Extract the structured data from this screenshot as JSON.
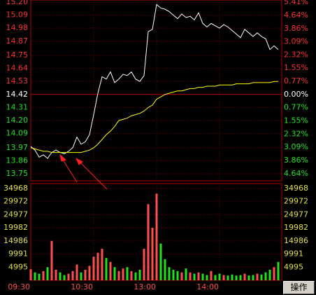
{
  "chart_data": {
    "type": "intraday",
    "categories": [
      "09:30",
      null,
      null,
      null,
      null,
      null,
      null,
      null,
      null,
      null,
      null,
      null,
      null,
      null,
      null,
      "10:30",
      null,
      null,
      null,
      null,
      null,
      null,
      null,
      null,
      null,
      null,
      null,
      null,
      null,
      null,
      "13:00",
      null,
      null,
      null,
      null,
      null,
      null,
      null,
      null,
      null,
      null,
      null,
      null,
      null,
      null,
      "14:00",
      null,
      null,
      null,
      null,
      null,
      null,
      null,
      null,
      null,
      null,
      null,
      null,
      null,
      null
    ],
    "series": [
      {
        "color": "#ffffff",
        "values": [
          13.98,
          13.95,
          13.89,
          13.91,
          13.88,
          13.93,
          13.95,
          13.93,
          13.92,
          13.94,
          13.97,
          14.06,
          14.0,
          14.02,
          14.08,
          14.25,
          14.43,
          14.57,
          14.55,
          14.61,
          14.52,
          14.55,
          14.59,
          14.58,
          14.61,
          14.55,
          14.53,
          14.58,
          14.95,
          14.97,
          15.18,
          15.15,
          15.14,
          15.12,
          15.09,
          15.06,
          15.1,
          15.07,
          15.08,
          15.05,
          15.11,
          15.02,
          14.99,
          15.02,
          15.0,
          14.98,
          15.01,
          14.99,
          14.96,
          14.93,
          14.9,
          14.97,
          14.94,
          14.91,
          14.94,
          14.91,
          14.89,
          14.8,
          14.83,
          14.8
        ]
      },
      {
        "color": "#ffff00",
        "values": [
          13.97,
          13.96,
          13.95,
          13.94,
          13.94,
          13.93,
          13.93,
          13.93,
          13.93,
          13.93,
          13.93,
          13.93,
          13.93,
          13.94,
          13.95,
          13.97,
          14.0,
          14.04,
          14.08,
          14.11,
          14.15,
          14.2,
          14.21,
          14.22,
          14.24,
          14.25,
          14.26,
          14.28,
          14.31,
          14.33,
          14.38,
          14.4,
          14.42,
          14.43,
          14.44,
          14.45,
          14.45,
          14.46,
          14.47,
          14.47,
          14.48,
          14.48,
          14.49,
          14.49,
          14.49,
          14.5,
          14.5,
          14.5,
          14.5,
          14.51,
          14.51,
          14.51,
          14.51,
          14.52,
          14.52,
          14.52,
          14.52,
          14.52,
          14.53,
          14.53
        ]
      }
    ],
    "ylim": [
      13.75,
      15.2
    ],
    "yticks": [
      {
        "value": 15.2,
        "label": "15.20"
      },
      15.09,
      14.98,
      14.87,
      14.75,
      14.64,
      14.53,
      14.42,
      14.31,
      {
        "value": 14.2,
        "label": "14.20"
      },
      14.09,
      13.97,
      13.86,
      13.75
    ],
    "y2lim": [
      -4.64,
      5.41
    ],
    "y2ticks": [
      {
        "value": 5.41,
        "label": "5.41%"
      },
      {
        "value": 4.64,
        "label": "4.64%"
      },
      {
        "value": 3.86,
        "label": "3.86%"
      },
      {
        "value": 3.09,
        "label": "3.09%"
      },
      {
        "value": 2.32,
        "label": "2.32%"
      },
      {
        "value": 1.55,
        "label": "1.55%"
      },
      {
        "value": 0.77,
        "label": "0.77%"
      },
      {
        "value": 0,
        "label": "0.00%"
      },
      {
        "value": -0.77,
        "label": "0.77%"
      },
      {
        "value": -1.55,
        "label": "1.55%"
      },
      {
        "value": -2.32,
        "label": "2.32%"
      },
      {
        "value": -3.09,
        "label": "3.09%"
      },
      {
        "value": -3.86,
        "label": "3.86%"
      },
      {
        "value": -4.64,
        "label": "4.64%"
      }
    ],
    "volume": {
      "up_color": "#ff5050",
      "down_color": "#20e020",
      "values": [
        4200,
        3000,
        2500,
        3500,
        5000,
        15000,
        4000,
        3000,
        2000,
        2500,
        3500,
        6000,
        3000,
        4000,
        5500,
        9000,
        10500,
        12000,
        8500,
        7000,
        5000,
        3500,
        4500,
        5000,
        3500,
        3000,
        4000,
        12000,
        29000,
        20000,
        33000,
        14000,
        8000,
        5000,
        4000,
        3500,
        3000,
        4500,
        3000,
        2500,
        3000,
        2500,
        2000,
        3500,
        2000,
        2500,
        2000,
        1800,
        2200,
        1800,
        2000,
        2500,
        1800,
        2000,
        2500,
        2200,
        3000,
        4000,
        5000,
        7000
      ],
      "ylim": [
        0,
        34968
      ],
      "yticks": [
        34968,
        29972,
        24977,
        19982,
        14986,
        9991,
        4995
      ]
    },
    "grid": true
  },
  "button_label": "操作"
}
